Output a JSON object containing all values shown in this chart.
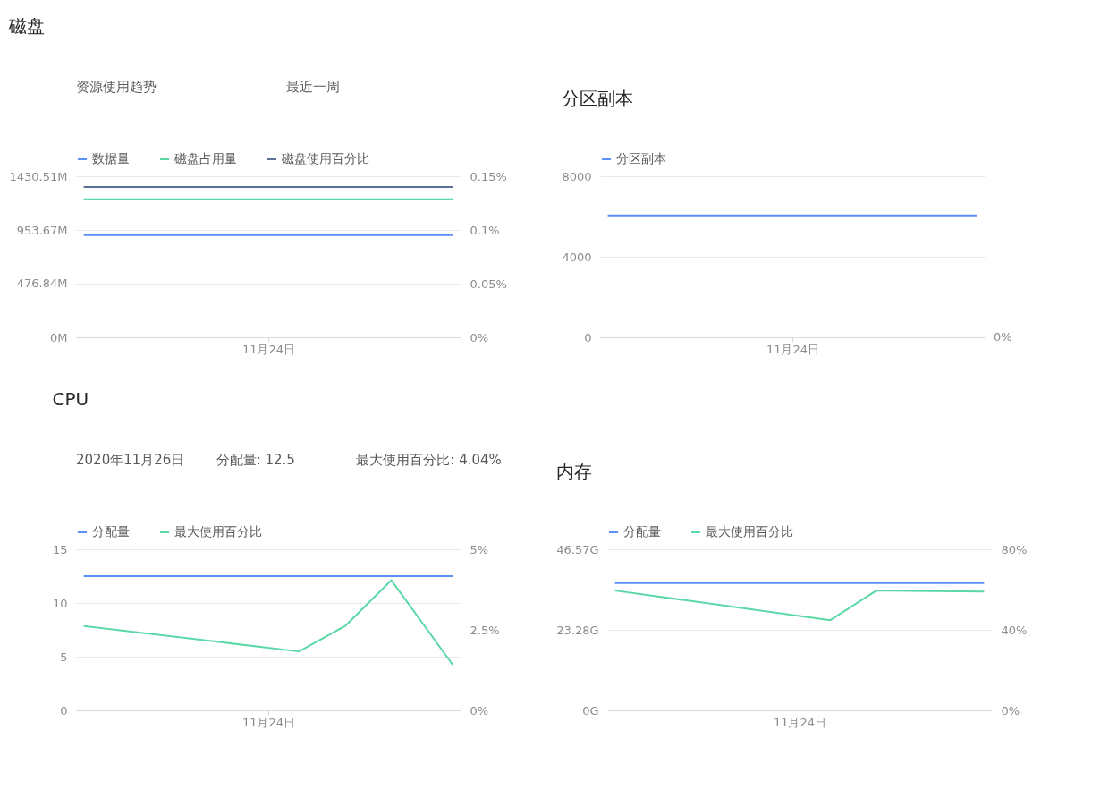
{
  "chart_data": [
    {
      "type": "line",
      "title": "磁盘",
      "annotations": [
        "资源使用趋势",
        "最近一周"
      ],
      "categories": [
        null,
        null,
        null,
        null,
        null,
        null,
        null,
        null,
        null,
        null,
        null,
        null,
        "11月24日",
        null,
        null,
        null,
        null,
        null,
        null,
        null,
        null,
        null,
        null,
        null,
        null
      ],
      "series": [
        {
          "name": "数据量",
          "color": "#5b8ff9",
          "axis": "y",
          "values": [
            908,
            null,
            null,
            null,
            null,
            null,
            null,
            null,
            null,
            null,
            null,
            null,
            null,
            null,
            null,
            null,
            null,
            null,
            null,
            null,
            null,
            null,
            null,
            null,
            908
          ]
        },
        {
          "name": "磁盘占用量",
          "color": "#5ad8a6",
          "axis": "y",
          "values": [
            1226,
            null,
            null,
            null,
            null,
            null,
            null,
            null,
            null,
            null,
            null,
            null,
            null,
            null,
            null,
            null,
            null,
            null,
            null,
            null,
            null,
            null,
            null,
            null,
            1226
          ]
        },
        {
          "name": "磁盘使用百分比",
          "color": "#5d7092",
          "axis": "y2",
          "values": [
            0.14,
            null,
            null,
            null,
            null,
            null,
            null,
            null,
            null,
            null,
            null,
            null,
            null,
            null,
            null,
            null,
            null,
            null,
            null,
            null,
            null,
            null,
            null,
            null,
            0.14
          ]
        }
      ],
      "ylim": [
        0,
        1430.51
      ],
      "yticks": [
        {
          "value": 0,
          "label": "0M"
        },
        {
          "value": 476.84,
          "label": "476.84M"
        },
        {
          "value": 953.67,
          "label": "953.67M"
        },
        {
          "value": 1430.51,
          "label": "1430.51M"
        }
      ],
      "y2lim": [
        0,
        0.15
      ],
      "y2ticks": [
        {
          "value": 0,
          "label": "0%"
        },
        {
          "value": 0.05,
          "label": "0.05%"
        },
        {
          "value": 0.1,
          "label": "0.1%"
        },
        {
          "value": 0.15,
          "label": "0.15%"
        }
      ],
      "grid": "y",
      "legend": "top"
    },
    {
      "type": "line",
      "title": "分区副本",
      "annotations": [
        "0%"
      ],
      "categories": [
        null,
        null,
        null,
        null,
        null,
        null,
        null,
        null,
        null,
        null,
        null,
        null,
        "11月24日",
        null,
        null,
        null,
        null,
        null,
        null,
        null,
        null,
        null,
        null,
        null,
        null
      ],
      "series": [
        {
          "name": "分区副本",
          "color": "#5b8ff9",
          "axis": "y",
          "values": [
            6060,
            null,
            null,
            null,
            null,
            null,
            null,
            null,
            null,
            null,
            null,
            null,
            null,
            null,
            null,
            null,
            null,
            null,
            null,
            null,
            null,
            null,
            null,
            null,
            6060
          ]
        }
      ],
      "ylim": [
        0,
        8000
      ],
      "yticks": [
        0,
        4000,
        8000
      ],
      "grid": "y",
      "legend": "top"
    },
    {
      "type": "line",
      "title": "CPU",
      "annotations": [
        "2020年11月26日",
        "分配量: 12.5",
        "最大使用百分比: 4.04%"
      ],
      "categories": [
        null,
        null,
        null,
        null,
        null,
        null,
        null,
        null,
        null,
        null,
        null,
        null,
        "11月24日",
        null,
        null,
        null,
        null,
        null,
        null,
        null,
        null,
        null,
        null,
        null,
        null
      ],
      "series": [
        {
          "name": "分配量",
          "color": "#5b8ff9",
          "axis": "y",
          "values": [
            12.5,
            null,
            null,
            null,
            null,
            null,
            null,
            null,
            null,
            null,
            null,
            null,
            null,
            null,
            null,
            null,
            null,
            null,
            null,
            null,
            null,
            null,
            null,
            null,
            12.5
          ]
        },
        {
          "name": "最大使用百分比",
          "color": "#5ad8a6",
          "axis": "y2",
          "values": [
            2.62,
            null,
            null,
            null,
            null,
            null,
            null,
            null,
            null,
            null,
            null,
            null,
            null,
            null,
            1.83,
            null,
            null,
            2.62,
            null,
            null,
            4.04,
            null,
            null,
            null,
            1.41
          ]
        }
      ],
      "ylim": [
        0,
        15
      ],
      "yticks": [
        0,
        5,
        10,
        15
      ],
      "y2lim": [
        0,
        5
      ],
      "y2ticks": [
        {
          "value": 0,
          "label": "0%"
        },
        {
          "value": 2.5,
          "label": "2.5%"
        },
        {
          "value": 5,
          "label": "5%"
        }
      ],
      "grid": "y",
      "legend": "top"
    },
    {
      "type": "line",
      "title": "内存",
      "categories": [
        null,
        null,
        null,
        null,
        null,
        null,
        null,
        null,
        null,
        null,
        null,
        null,
        "11月24日",
        null,
        null,
        null,
        null,
        null,
        null,
        null,
        null,
        null,
        null,
        null,
        null
      ],
      "series": [
        {
          "name": "分配量",
          "color": "#5b8ff9",
          "axis": "y",
          "values": [
            36.8,
            null,
            null,
            null,
            null,
            null,
            null,
            null,
            null,
            null,
            null,
            null,
            null,
            null,
            null,
            null,
            null,
            null,
            null,
            null,
            null,
            null,
            null,
            null,
            36.8
          ]
        },
        {
          "name": "最大使用百分比",
          "color": "#5ad8a6",
          "axis": "y2",
          "values": [
            59.5,
            null,
            null,
            null,
            null,
            null,
            null,
            null,
            null,
            null,
            null,
            null,
            null,
            null,
            44.8,
            null,
            null,
            59.5,
            null,
            null,
            null,
            null,
            null,
            null,
            59
          ]
        }
      ],
      "ylim": [
        0,
        46.57
      ],
      "yticks": [
        {
          "value": 0,
          "label": "0G"
        },
        {
          "value": 23.28,
          "label": "23.28G"
        },
        {
          "value": 46.57,
          "label": "46.57G"
        }
      ],
      "y2lim": [
        0,
        80
      ],
      "y2ticks": [
        {
          "value": 0,
          "label": "0%"
        },
        {
          "value": 40,
          "label": "40%"
        },
        {
          "value": 80,
          "label": "80%"
        }
      ],
      "grid": "y",
      "legend": "top"
    }
  ]
}
